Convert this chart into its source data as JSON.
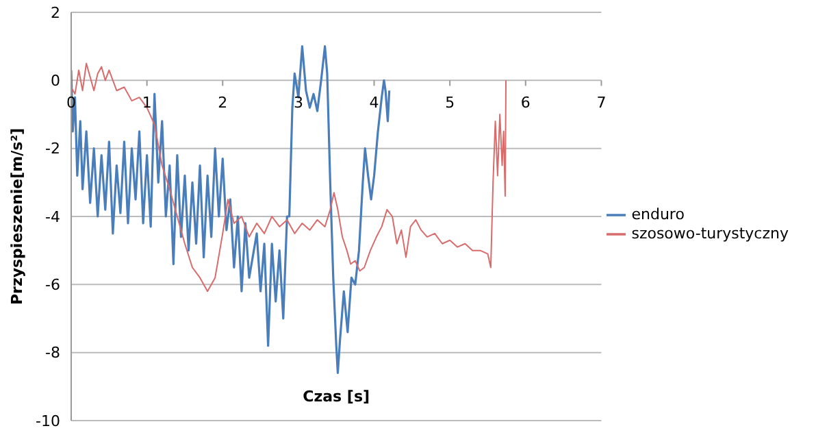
{
  "chart_data": {
    "type": "line",
    "xlabel": "Czas [s]",
    "ylabel": "Przyspieszenie[m/s²]",
    "xlim": [
      0,
      7
    ],
    "xticks": [
      0,
      1,
      2,
      3,
      4,
      5,
      6,
      7
    ],
    "ylim": [
      -10,
      2
    ],
    "yticks": [
      -10,
      -8,
      -6,
      -4,
      -2,
      0,
      2
    ],
    "grid": "y",
    "legend": "right",
    "marker": "none",
    "line_style": "solid",
    "series": [
      {
        "name": "enduro",
        "color": "#4a7ebb",
        "x": [
          0,
          0.02,
          0.05,
          0.08,
          0.12,
          0.15,
          0.2,
          0.25,
          0.3,
          0.35,
          0.4,
          0.45,
          0.5,
          0.55,
          0.6,
          0.65,
          0.7,
          0.75,
          0.8,
          0.85,
          0.9,
          0.95,
          1.0,
          1.05,
          1.1,
          1.15,
          1.2,
          1.25,
          1.3,
          1.35,
          1.4,
          1.45,
          1.5,
          1.55,
          1.6,
          1.65,
          1.7,
          1.75,
          1.8,
          1.85,
          1.9,
          1.95,
          2.0,
          2.05,
          2.1,
          2.15,
          2.2,
          2.25,
          2.3,
          2.35,
          2.45,
          2.5,
          2.55,
          2.6,
          2.65,
          2.7,
          2.75,
          2.8,
          2.85,
          2.88,
          2.92,
          2.95,
          3.0,
          3.05,
          3.1,
          3.15,
          3.2,
          3.25,
          3.3,
          3.35,
          3.38,
          3.42,
          3.46,
          3.5,
          3.52,
          3.55,
          3.6,
          3.65,
          3.7,
          3.75,
          3.8,
          3.85,
          3.88,
          3.92,
          3.96,
          4.0,
          4.05,
          4.1,
          4.13,
          4.15,
          4.18,
          4.2
        ],
        "values": [
          0.3,
          -1.5,
          -0.5,
          -2.8,
          -1.2,
          -3.2,
          -1.5,
          -3.6,
          -2.0,
          -4.0,
          -2.2,
          -3.8,
          -1.8,
          -4.5,
          -2.5,
          -3.9,
          -1.8,
          -4.2,
          -2.0,
          -3.5,
          -1.5,
          -4.2,
          -2.2,
          -4.3,
          -0.4,
          -3.0,
          -1.2,
          -4.0,
          -2.5,
          -5.4,
          -2.2,
          -4.6,
          -2.8,
          -5.0,
          -3.0,
          -4.8,
          -2.5,
          -5.2,
          -2.8,
          -4.6,
          -2.0,
          -4.0,
          -2.3,
          -4.4,
          -3.5,
          -5.5,
          -4.0,
          -6.2,
          -4.2,
          -5.8,
          -4.5,
          -6.2,
          -4.8,
          -7.8,
          -4.8,
          -6.5,
          -5.0,
          -7.0,
          -4.0,
          -4.0,
          -0.8,
          0.2,
          -0.5,
          1.0,
          -0.3,
          -0.8,
          -0.4,
          -0.9,
          0.0,
          1.0,
          0.2,
          -3.0,
          -5.8,
          -7.8,
          -8.6,
          -7.6,
          -6.2,
          -7.4,
          -5.8,
          -6.0,
          -5.0,
          -3.0,
          -2.0,
          -2.8,
          -3.5,
          -2.8,
          -1.5,
          -0.5,
          0.0,
          -0.3,
          -1.2,
          -0.3
        ]
      },
      {
        "name": "szosowo-turystyczny",
        "color": "#d86b6b",
        "x": [
          0,
          0.05,
          0.1,
          0.15,
          0.2,
          0.25,
          0.3,
          0.35,
          0.4,
          0.45,
          0.5,
          0.6,
          0.7,
          0.8,
          0.9,
          1.0,
          1.1,
          1.2,
          1.3,
          1.4,
          1.5,
          1.6,
          1.7,
          1.8,
          1.9,
          2.0,
          2.07,
          2.15,
          2.25,
          2.35,
          2.45,
          2.55,
          2.65,
          2.75,
          2.85,
          2.95,
          3.05,
          3.15,
          3.25,
          3.35,
          3.42,
          3.47,
          3.52,
          3.58,
          3.64,
          3.69,
          3.75,
          3.81,
          3.87,
          3.95,
          4.03,
          4.1,
          4.17,
          4.24,
          4.3,
          4.36,
          4.42,
          4.48,
          4.55,
          4.62,
          4.7,
          4.8,
          4.9,
          5.0,
          5.1,
          5.2,
          5.3,
          5.4,
          5.5,
          5.54,
          5.57,
          5.6,
          5.63,
          5.66,
          5.69,
          5.71,
          5.73,
          5.74
        ],
        "values": [
          -0.2,
          -0.4,
          0.3,
          -0.3,
          0.5,
          0.1,
          -0.3,
          0.2,
          0.4,
          0.0,
          0.3,
          -0.3,
          -0.2,
          -0.6,
          -0.5,
          -0.8,
          -1.3,
          -2.5,
          -3.2,
          -4.0,
          -4.8,
          -5.5,
          -5.8,
          -6.2,
          -5.8,
          -4.5,
          -3.5,
          -4.2,
          -4.0,
          -4.6,
          -4.2,
          -4.5,
          -4.0,
          -4.3,
          -4.1,
          -4.5,
          -4.2,
          -4.4,
          -4.1,
          -4.3,
          -3.8,
          -3.3,
          -3.8,
          -4.6,
          -5.0,
          -5.4,
          -5.3,
          -5.6,
          -5.5,
          -5.0,
          -4.6,
          -4.3,
          -3.8,
          -4.0,
          -4.8,
          -4.4,
          -5.2,
          -4.3,
          -4.1,
          -4.4,
          -4.6,
          -4.5,
          -4.8,
          -4.7,
          -4.9,
          -4.8,
          -5.0,
          -5.0,
          -5.1,
          -5.5,
          -3.0,
          -1.2,
          -2.8,
          -1.0,
          -2.5,
          -1.5,
          -3.4,
          0
        ]
      }
    ]
  }
}
